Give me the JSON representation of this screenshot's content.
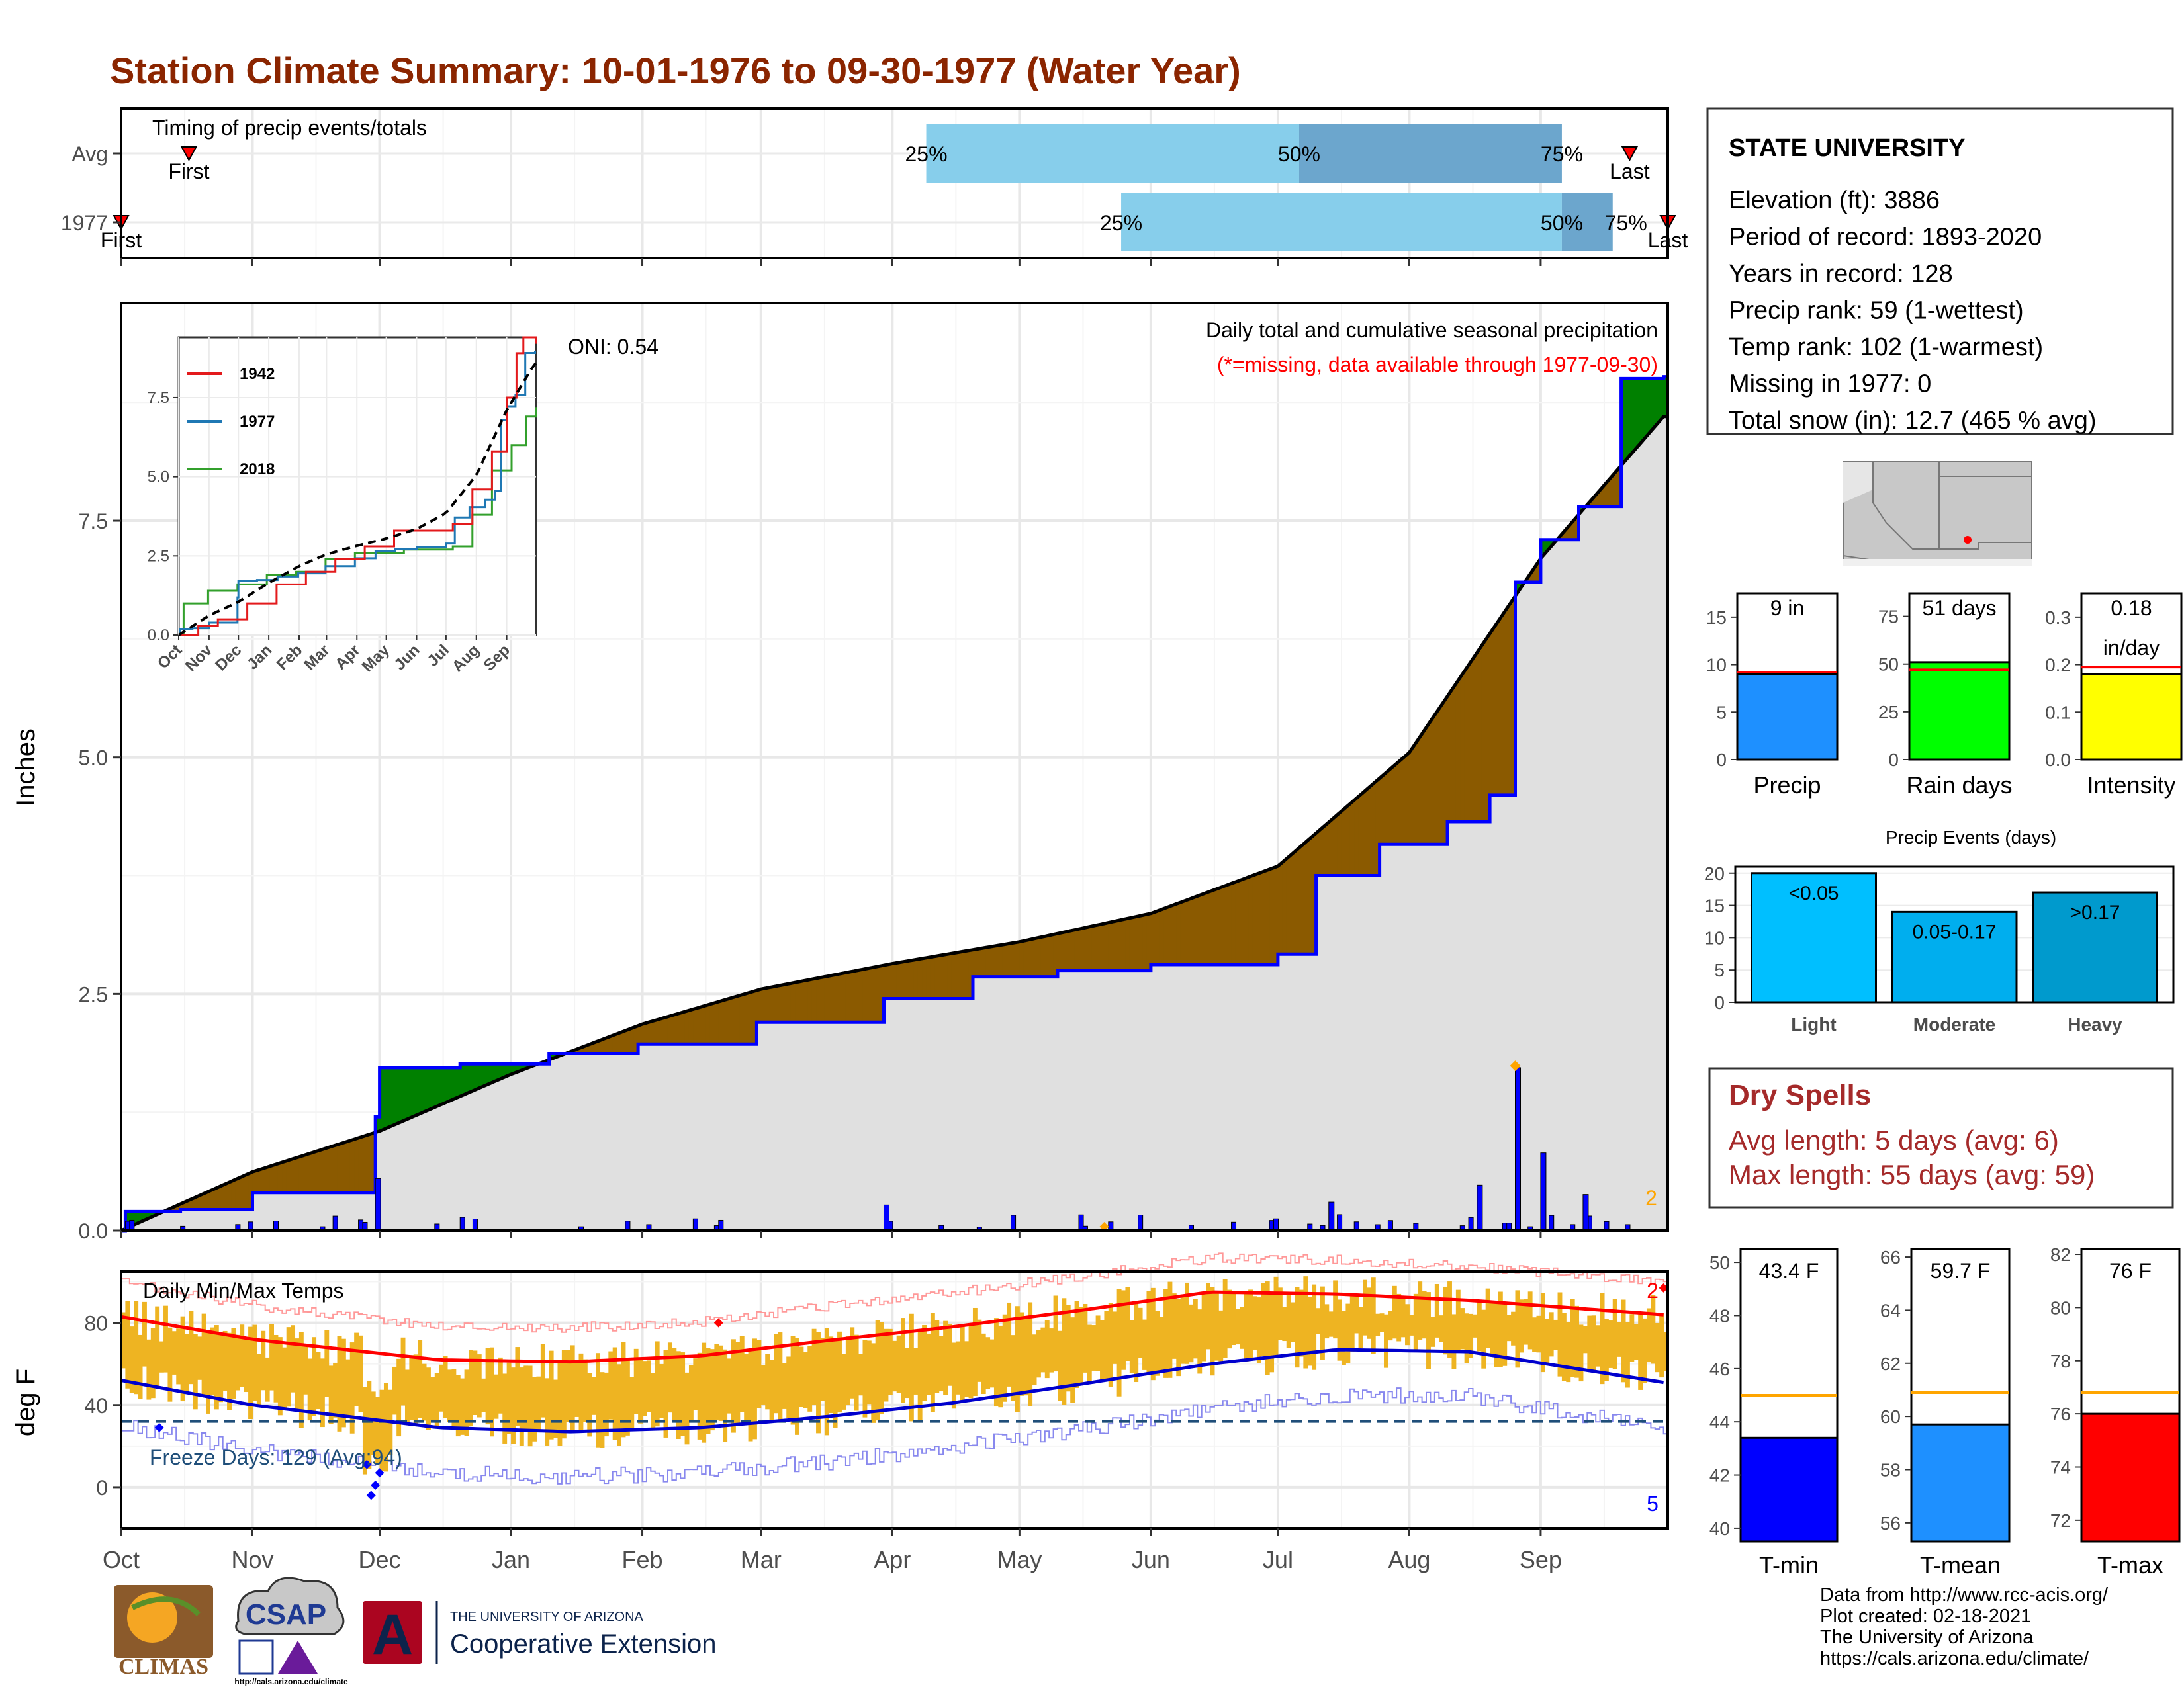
{
  "title": "Station Climate Summary: 10-01-1976 to 09-30-1977 (Water Year)",
  "colors": {
    "title": "#8B2500",
    "normal_fill": "#E0E0E0",
    "above_fill": "#008000",
    "below_fill": "#8B5A00",
    "cumulative_line": "#0000FF",
    "daily_bar": "#0000FF",
    "bar_light": "#87CEEB",
    "bar_dark": "#6CA6CD",
    "marker": "#FF0000",
    "temp_bar": "#EEB422",
    "avg_max": "#FF0000",
    "avg_min": "#0000CD",
    "record_max": "#FF9999",
    "record_min": "#8888EE",
    "dry_text": "#A52A2A",
    "orange": "#FFA500"
  },
  "timing_panel": {
    "label": "Timing of precip events/totals",
    "rows": [
      {
        "name": "Avg",
        "first": "First",
        "last": "Last",
        "p25": "25%",
        "p50": "50%",
        "p75": "75%",
        "first_day": 16,
        "last_day": 356,
        "p25_day": 190,
        "p50_day": 278,
        "p75_day": 340
      },
      {
        "name": "1977",
        "first": "First",
        "last": "Last",
        "p25": "25%",
        "p50": "50%",
        "p75": "75%",
        "first_day": 0,
        "last_day": 365,
        "p25_day": 236,
        "p50_day": 340,
        "p75_day": 352
      }
    ]
  },
  "precip_panel": {
    "caption": "Daily total and cumulative seasonal precipitation",
    "missing_note": "(*=missing, data available through 1977-09-30)",
    "oni": "ONI: 0.54",
    "ylabel": "Inches",
    "yticks": [
      "0.0",
      "2.5",
      "5.0",
      "7.5"
    ],
    "corner_count": "2"
  },
  "inset": {
    "yticks": [
      "0.0",
      "2.5",
      "5.0",
      "7.5"
    ],
    "months": [
      "Oct",
      "Nov",
      "Dec",
      "Jan",
      "Feb",
      "Mar",
      "Apr",
      "May",
      "Jun",
      "Jul",
      "Aug",
      "Sep"
    ],
    "legend": [
      "1942",
      "1977",
      "2018"
    ]
  },
  "temp_panel": {
    "label": "Daily Min/Max Temps",
    "ylabel": "deg F",
    "yticks": [
      "0",
      "40",
      "80"
    ],
    "freeze": "Freeze Days: 129 (Avg:94)",
    "count_max": "2",
    "count_min": "5"
  },
  "months": [
    "Oct",
    "Nov",
    "Dec",
    "Jan",
    "Feb",
    "Mar",
    "Apr",
    "May",
    "Jun",
    "Jul",
    "Aug",
    "Sep"
  ],
  "station": {
    "name": "STATE UNIVERSITY",
    "lines": [
      "Elevation (ft): 3886",
      "Period of record: 1893-2020",
      "Years in record: 128",
      "Precip rank: 59 (1-wettest)",
      "Temp rank: 102 (1-warmest)",
      "Missing in 1977: 0",
      "Total snow (in): 12.7 (465 % avg)"
    ]
  },
  "mini_precip": [
    {
      "label": "Precip",
      "value_text": "9 in",
      "value_text2": "",
      "yticks": [
        "0",
        "5",
        "10",
        "15"
      ],
      "ymax": 17.5,
      "value": 9,
      "avg": 9.2,
      "color": "#1E90FF"
    },
    {
      "label": "Rain days",
      "value_text": "51 days",
      "value_text2": "",
      "yticks": [
        "0",
        "25",
        "50",
        "75"
      ],
      "ymax": 87,
      "value": 51,
      "avg": 47,
      "color": "#00FF00"
    },
    {
      "label": "Intensity",
      "value_text": "0.18",
      "value_text2": "in/day",
      "yticks": [
        "0.0",
        "0.1",
        "0.2",
        "0.3"
      ],
      "ymax": 0.35,
      "value": 0.18,
      "avg": 0.195,
      "color": "#FFFF00"
    }
  ],
  "events": {
    "title": "Precip Events (days)",
    "yticks": [
      "0",
      "5",
      "10",
      "15",
      "20"
    ],
    "bars": [
      {
        "cat": "Light",
        "label": "<0.05",
        "value": 20,
        "color": "#00BFFF"
      },
      {
        "cat": "Moderate",
        "label": "0.05-0.17",
        "value": 14,
        "color": "#00AEEE"
      },
      {
        "cat": "Heavy",
        "label": ">0.17",
        "value": 17,
        "color": "#009ACD"
      }
    ]
  },
  "dry_spells": {
    "title": "Dry Spells",
    "avg": "Avg length: 5 days (avg: 6)",
    "max": "Max length: 55 days (avg: 59)"
  },
  "mini_temp": [
    {
      "label": "T-min",
      "value_text": "43.4 F",
      "yticks": [
        "40",
        "42",
        "44",
        "46",
        "48",
        "50"
      ],
      "ymin": 39.5,
      "ymax": 50.5,
      "value": 43.4,
      "avg": 45.0,
      "color": "#0000FF"
    },
    {
      "label": "T-mean",
      "value_text": "59.7 F",
      "yticks": [
        "56",
        "58",
        "60",
        "62",
        "64",
        "66"
      ],
      "ymin": 55.3,
      "ymax": 66.3,
      "value": 59.7,
      "avg": 60.9,
      "color": "#1E90FF"
    },
    {
      "label": "T-max",
      "value_text": "76 F",
      "yticks": [
        "72",
        "74",
        "76",
        "78",
        "80",
        "82"
      ],
      "ymin": 71.2,
      "ymax": 82.2,
      "value": 76.0,
      "avg": 76.8,
      "color": "#FF0000"
    }
  ],
  "footer": [
    "Data from http://www.rcc-acis.org/",
    "Plot created: 02-18-2021",
    "The University of Arizona",
    "https://cals.arizona.edu/climate/"
  ],
  "logos": {
    "climas": "CLIMAS",
    "csap": "CSAP",
    "csap_url": "http://cals.arizona.edu/climate",
    "ua_top": "THE UNIVERSITY OF ARIZONA",
    "ua_bottom": "Cooperative Extension",
    "ua_letter": "A"
  },
  "chart_data": {
    "type": "area",
    "title": "Station Climate Summary: 10-01-1976 to 09-30-1977 (Water Year)",
    "xlabel": "",
    "ylabel": "Inches",
    "ylim": [
      0,
      9.8
    ],
    "cumulative_1977": {
      "x": [
        "Oct 1",
        "Oct 2",
        "Oct 15",
        "Nov 1",
        "Nov 30",
        "Dec 1",
        "Dec 20",
        "Jan 10",
        "Jan 31",
        "Feb 28",
        "Mar 30",
        "Apr 20",
        "May 10",
        "Jun 1",
        "Jul 1",
        "Jul 10",
        "Jul 25",
        "Aug 10",
        "Aug 20",
        "Aug 26",
        "Sep 1",
        "Sep 10",
        "Sep 20",
        "Sep 30"
      ],
      "y": [
        0.0,
        0.2,
        0.22,
        0.4,
        1.2,
        1.72,
        1.76,
        1.87,
        1.97,
        2.2,
        2.45,
        2.68,
        2.75,
        2.81,
        2.92,
        3.75,
        4.08,
        4.32,
        4.6,
        6.85,
        7.3,
        7.65,
        9.0,
        9.02
      ]
    },
    "normal_cumulative": {
      "x": [
        "Oct 1",
        "Nov 1",
        "Dec 1",
        "Jan 1",
        "Feb 1",
        "Mar 1",
        "Apr 1",
        "May 1",
        "Jun 1",
        "Jul 1",
        "Aug 1",
        "Sep 1",
        "Sep 30"
      ],
      "y": [
        0.0,
        0.62,
        1.05,
        1.65,
        2.18,
        2.55,
        2.82,
        3.05,
        3.35,
        3.85,
        5.05,
        7.1,
        8.6
      ]
    },
    "daily_precip_events": [
      {
        "x": "Nov 30",
        "y": 0.55
      },
      {
        "x": "Mar 30",
        "y": 0.27
      },
      {
        "x": "Jul 13",
        "y": 0.3
      },
      {
        "x": "Aug 17",
        "y": 0.48
      },
      {
        "x": "Aug 26",
        "y": 1.72
      },
      {
        "x": "Sep 1",
        "y": 0.82
      },
      {
        "x": "Sep 11",
        "y": 0.38
      }
    ],
    "temperature": {
      "ylim": [
        -20,
        105
      ],
      "avg_max": {
        "x": [
          "Oct 1",
          "Nov 1",
          "Dec 15",
          "Jan 15",
          "Feb 15",
          "Mar 15",
          "Apr 15",
          "May 15",
          "Jun 15",
          "Jul 15",
          "Aug 15",
          "Sep 30"
        ],
        "y": [
          83,
          72,
          62,
          61,
          64,
          71,
          78,
          86,
          95,
          94,
          91,
          84
        ]
      },
      "avg_min": {
        "x": [
          "Oct 1",
          "Nov 1",
          "Dec 15",
          "Jan 15",
          "Feb 15",
          "Mar 15",
          "Apr 15",
          "May 15",
          "Jun 15",
          "Jul 15",
          "Aug 15",
          "Sep 30"
        ],
        "y": [
          52,
          40,
          29,
          27,
          29,
          34,
          41,
          50,
          60,
          67,
          66,
          51
        ]
      },
      "freeze_line": 32
    },
    "series": [
      {
        "name": "1942"
      },
      {
        "name": "1977"
      },
      {
        "name": "2018"
      }
    ]
  }
}
